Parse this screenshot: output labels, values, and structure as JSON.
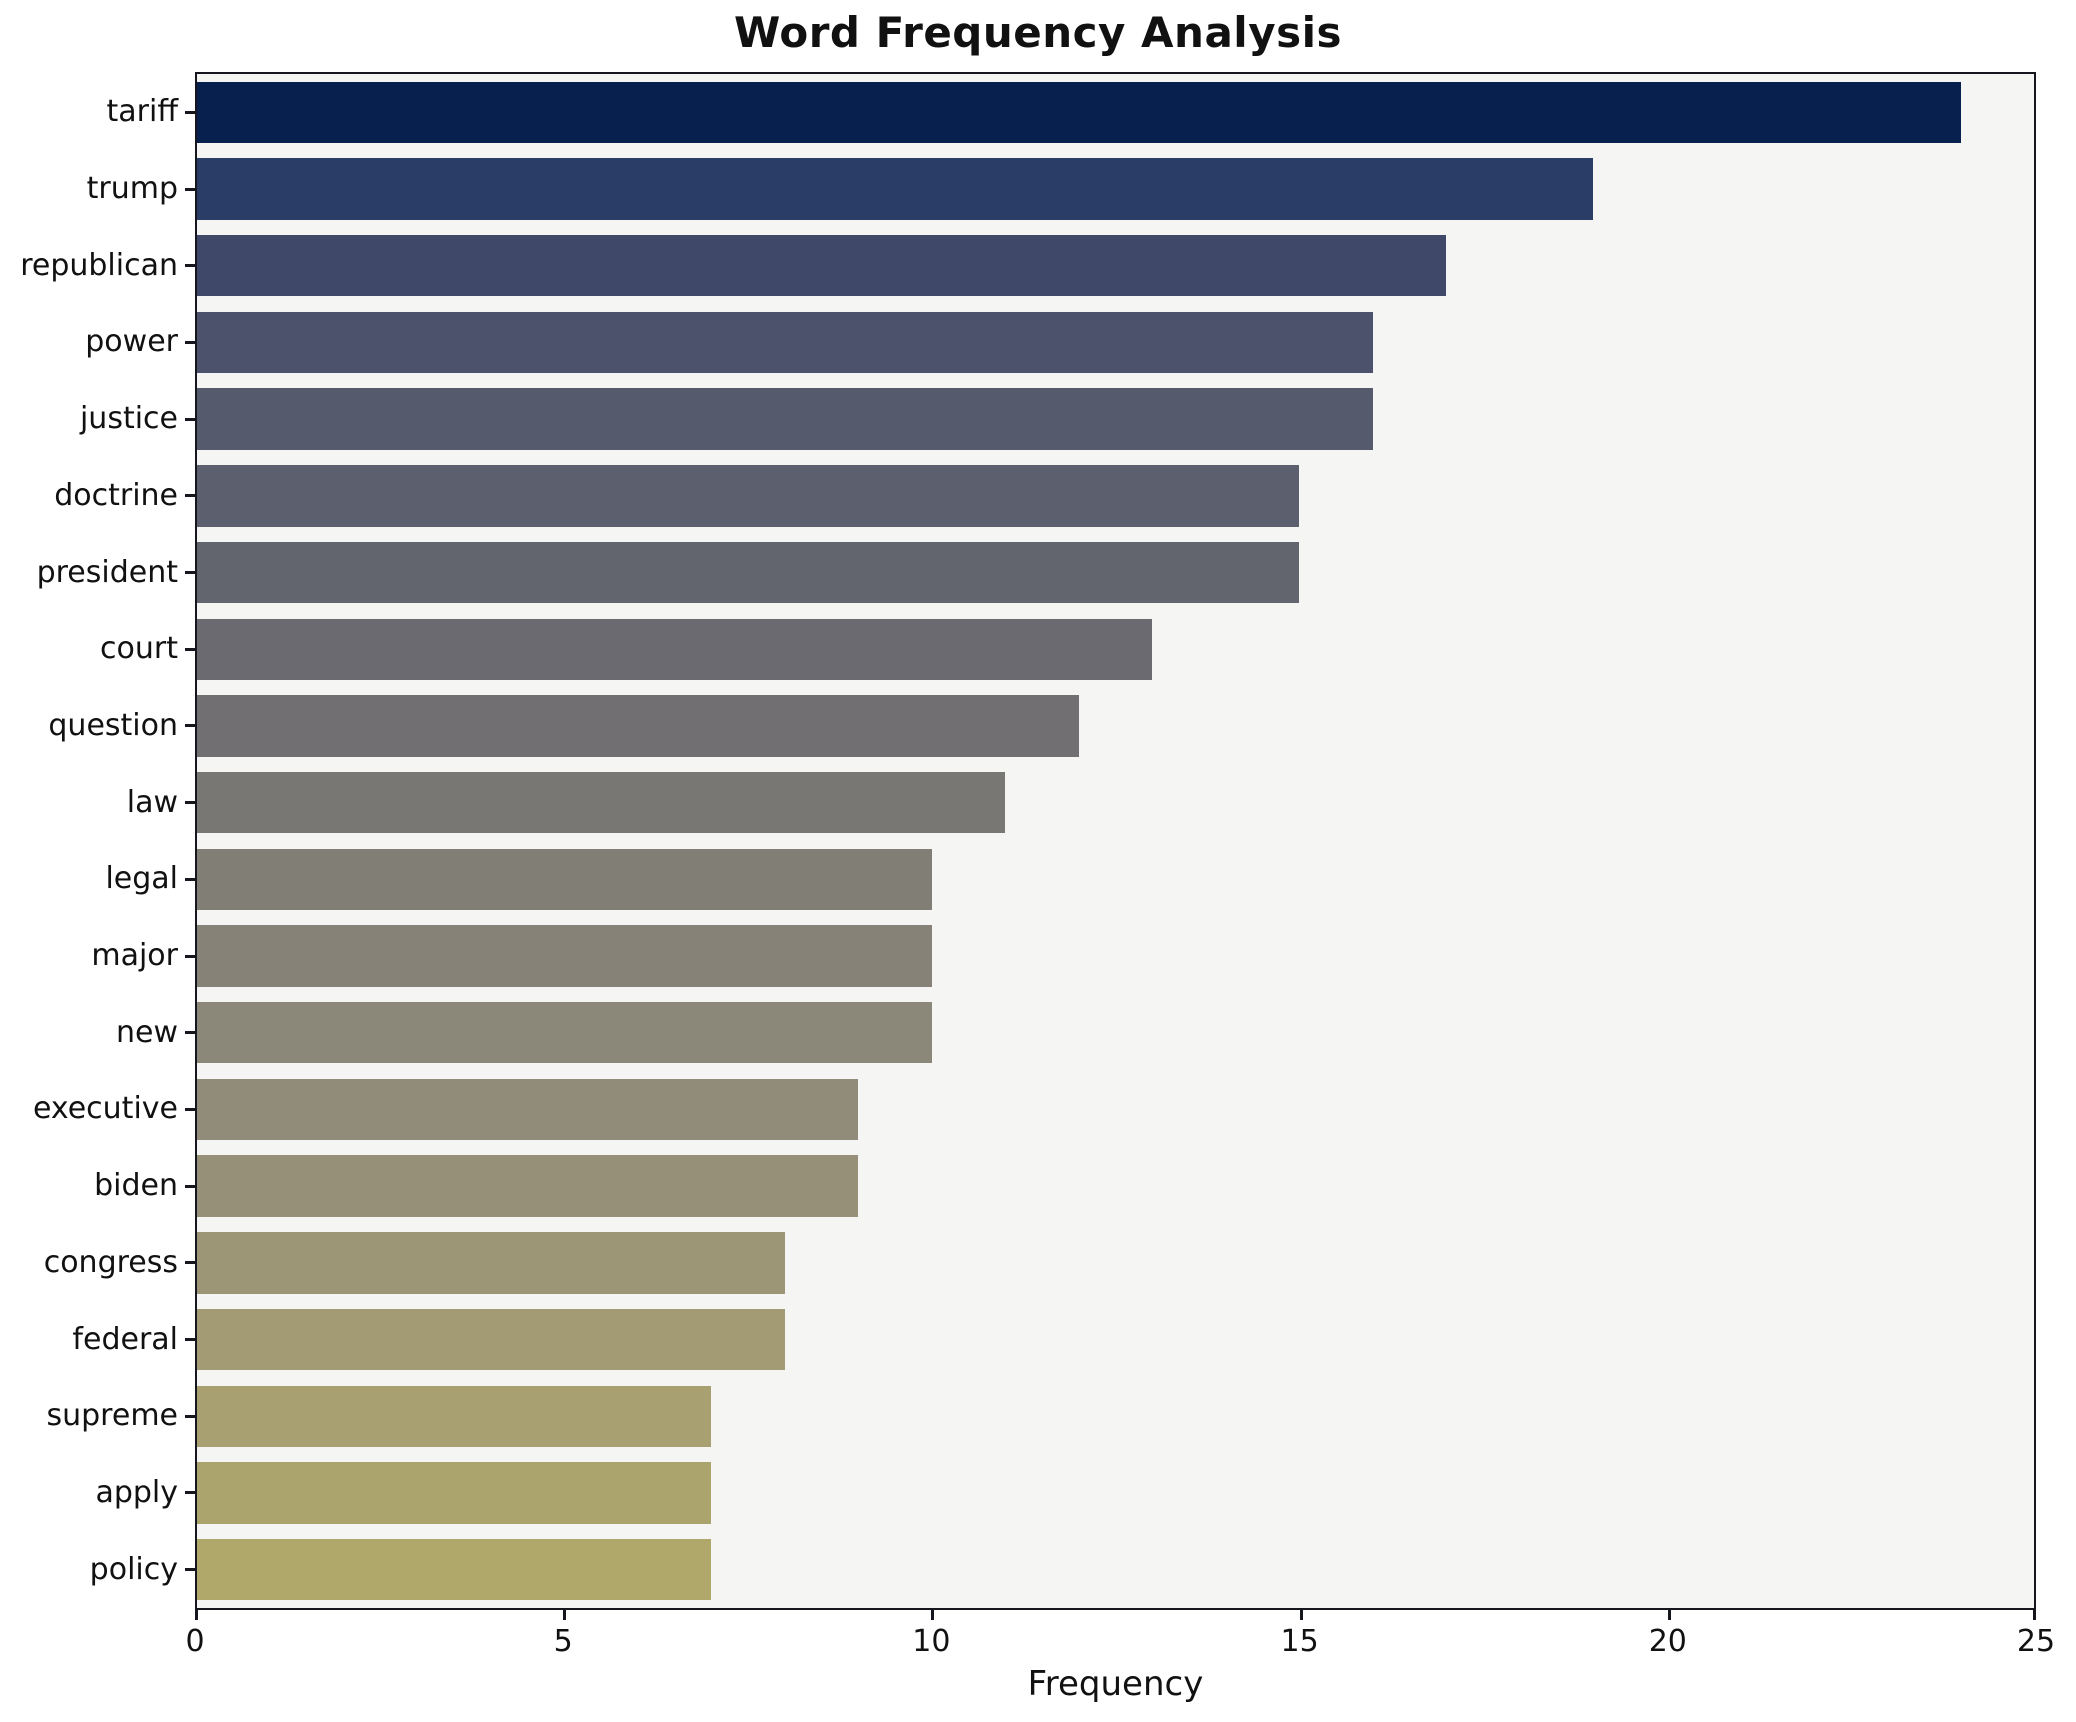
{
  "chart_data": {
    "type": "bar",
    "orientation": "horizontal",
    "title": "Word Frequency Analysis",
    "xlabel": "Frequency",
    "ylabel": "",
    "xlim": [
      0,
      25
    ],
    "xticks": [
      0,
      5,
      10,
      15,
      20,
      25
    ],
    "grid": false,
    "legend": "none",
    "categories": [
      "tariff",
      "trump",
      "republican",
      "power",
      "justice",
      "doctrine",
      "president",
      "court",
      "question",
      "law",
      "legal",
      "major",
      "new",
      "executive",
      "biden",
      "congress",
      "federal",
      "supreme",
      "apply",
      "policy"
    ],
    "values": [
      24,
      19,
      17,
      16,
      16,
      15,
      15,
      13,
      12,
      11,
      10,
      10,
      10,
      9,
      9,
      8,
      8,
      7,
      7,
      7
    ],
    "bar_colors": [
      "#07204e",
      "#293d66",
      "#40486a",
      "#4d526c",
      "#555a6d",
      "#5c5f6e",
      "#62646e",
      "#6a6a70",
      "#716f72",
      "#797774",
      "#817e76",
      "#868278",
      "#8b8779",
      "#918c79",
      "#969078",
      "#9c9676",
      "#a29b74",
      "#a8a070",
      "#aca46d",
      "#b0a86a"
    ],
    "colormap": "cividis",
    "plot_bg": "#f5f5f4",
    "figure_bg": "#ffffff",
    "spine_color": "#16161f",
    "text_color": "#111111"
  }
}
